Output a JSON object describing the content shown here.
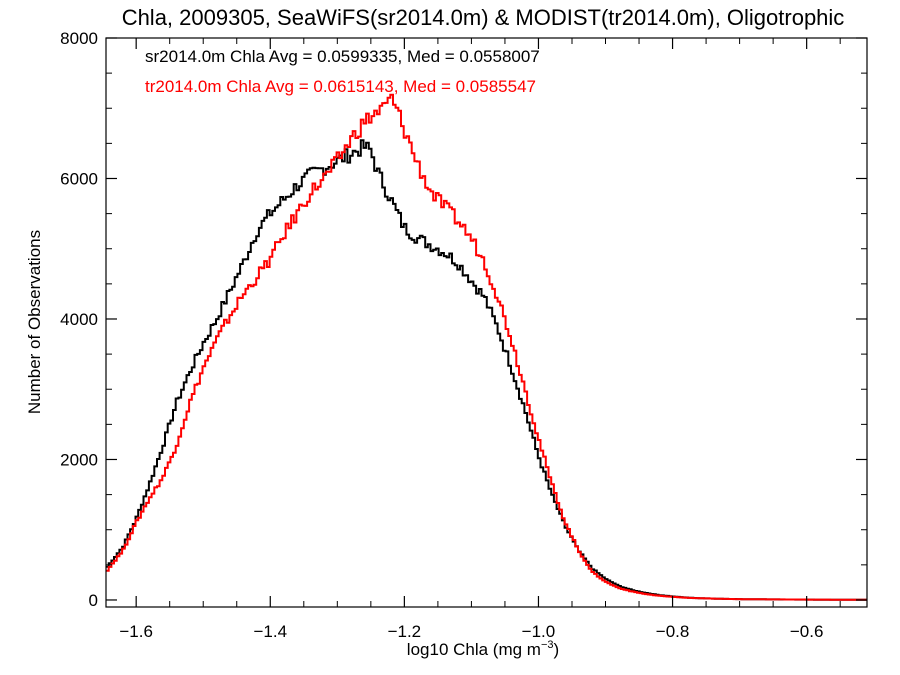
{
  "chart_data": {
    "type": "line",
    "title": "Chla, 2009305, SeaWiFS(sr2014.0m) & MODIST(tr2014.0m), Oligotrophic",
    "xlabel": "log10 Chla (mg m",
    "xlabel_sup": "−3",
    "xlabel_close": ")",
    "ylabel": "Number of Observations",
    "xlim": [
      -1.645,
      -0.51
    ],
    "ylim": [
      -100,
      8000
    ],
    "x_ticks": [
      -1.6,
      -1.4,
      -1.2,
      -1.0,
      -0.8,
      -0.6
    ],
    "x_tick_labels": [
      "−1.6",
      "−1.4",
      "−1.2",
      "−1.0",
      "−0.8",
      "−0.6"
    ],
    "y_ticks": [
      0,
      2000,
      4000,
      6000,
      8000
    ],
    "y_tick_labels": [
      "0",
      "2000",
      "4000",
      "6000",
      "8000"
    ],
    "grid": false,
    "series": [
      {
        "name": "sr2014.0m",
        "color": "#000000",
        "annotation": "sr2014.0m Chla Avg = 0.0599335, Med = 0.0558007",
        "x": [
          -1.645,
          -1.62,
          -1.6,
          -1.58,
          -1.56,
          -1.54,
          -1.52,
          -1.5,
          -1.48,
          -1.46,
          -1.44,
          -1.42,
          -1.4,
          -1.38,
          -1.36,
          -1.34,
          -1.32,
          -1.3,
          -1.28,
          -1.26,
          -1.25,
          -1.24,
          -1.22,
          -1.2,
          -1.18,
          -1.16,
          -1.14,
          -1.12,
          -1.1,
          -1.08,
          -1.06,
          -1.04,
          -1.02,
          -1.0,
          -0.98,
          -0.96,
          -0.94,
          -0.92,
          -0.9,
          -0.88,
          -0.86,
          -0.84,
          -0.82,
          -0.8,
          -0.78,
          -0.76,
          -0.74,
          -0.72,
          -0.7,
          -0.65,
          -0.6,
          -0.55,
          -0.51
        ],
        "y": [
          450,
          750,
          1150,
          1650,
          2200,
          2800,
          3250,
          3650,
          4000,
          4400,
          4800,
          5250,
          5500,
          5700,
          5900,
          6050,
          6150,
          6250,
          6350,
          6450,
          6400,
          6100,
          5700,
          5300,
          5150,
          5050,
          4950,
          4800,
          4550,
          4300,
          3850,
          3300,
          2700,
          2050,
          1500,
          1050,
          700,
          450,
          300,
          200,
          140,
          100,
          70,
          50,
          35,
          25,
          20,
          15,
          12,
          8,
          5,
          3,
          2
        ]
      },
      {
        "name": "tr2014.0m",
        "color": "#ff0000",
        "annotation": "tr2014.0m Chla Avg = 0.0615143, Med = 0.0585547",
        "x": [
          -1.645,
          -1.62,
          -1.6,
          -1.58,
          -1.56,
          -1.54,
          -1.52,
          -1.5,
          -1.48,
          -1.46,
          -1.44,
          -1.42,
          -1.4,
          -1.38,
          -1.36,
          -1.34,
          -1.32,
          -1.3,
          -1.28,
          -1.26,
          -1.24,
          -1.23,
          -1.22,
          -1.21,
          -1.2,
          -1.18,
          -1.16,
          -1.14,
          -1.12,
          -1.1,
          -1.08,
          -1.06,
          -1.04,
          -1.02,
          -1.0,
          -0.98,
          -0.96,
          -0.94,
          -0.92,
          -0.9,
          -0.88,
          -0.86,
          -0.84,
          -0.82,
          -0.8,
          -0.78,
          -0.76,
          -0.74,
          -0.72,
          -0.7,
          -0.65,
          -0.6,
          -0.55,
          -0.51
        ],
        "y": [
          400,
          700,
          1100,
          1450,
          1750,
          2200,
          2800,
          3300,
          3700,
          4050,
          4350,
          4600,
          4850,
          5200,
          5500,
          5800,
          6000,
          6250,
          6550,
          6800,
          6950,
          7000,
          7150,
          6950,
          6700,
          6200,
          5800,
          5600,
          5400,
          5150,
          4800,
          4300,
          3700,
          3000,
          2300,
          1650,
          1100,
          700,
          400,
          260,
          170,
          120,
          85,
          60,
          45,
          32,
          25,
          20,
          15,
          12,
          8,
          6,
          4,
          3
        ]
      }
    ]
  }
}
